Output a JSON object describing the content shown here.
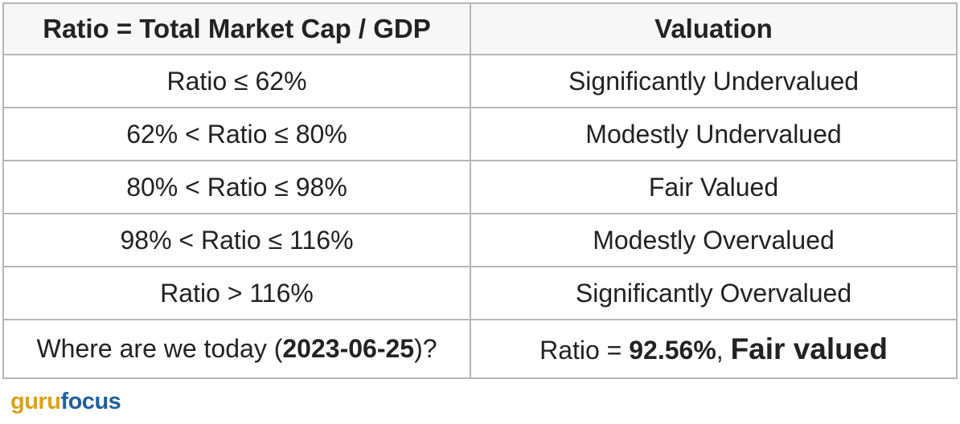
{
  "table": {
    "headers": [
      "Ratio = Total Market Cap / GDP",
      "Valuation"
    ],
    "rows": [
      {
        "ratio": "Ratio ≤ 62%",
        "valuation": "Significantly Undervalued"
      },
      {
        "ratio": "62% < Ratio ≤ 80%",
        "valuation": "Modestly Undervalued"
      },
      {
        "ratio": "80% < Ratio ≤ 98%",
        "valuation": "Fair Valued"
      },
      {
        "ratio": "98% < Ratio ≤ 116%",
        "valuation": "Modestly Overvalued"
      },
      {
        "ratio": "Ratio > 116%",
        "valuation": "Significantly Overvalued"
      }
    ],
    "today": {
      "question_prefix": "Where are we today (",
      "date": "2023-06-25",
      "question_suffix": ")?",
      "ratio_prefix": "Ratio = ",
      "ratio_value": "92.56%",
      "separator": ", ",
      "verdict": "Fair valued"
    }
  },
  "logo": {
    "part1": "guru",
    "part2": "focus",
    "colors": {
      "guru": "#d8a21b",
      "focus": "#1f5f9e"
    }
  }
}
